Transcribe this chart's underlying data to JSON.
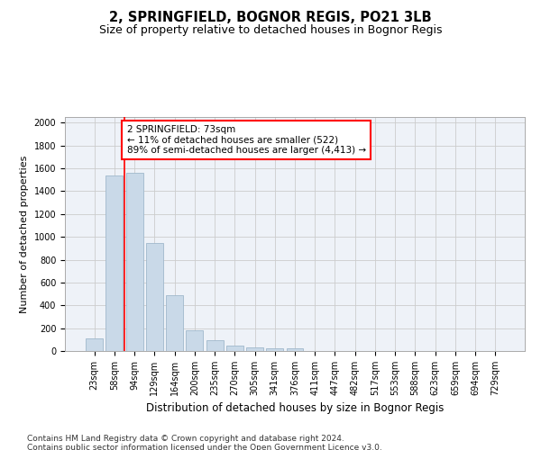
{
  "title": "2, SPRINGFIELD, BOGNOR REGIS, PO21 3LB",
  "subtitle": "Size of property relative to detached houses in Bognor Regis",
  "xlabel": "Distribution of detached houses by size in Bognor Regis",
  "ylabel": "Number of detached properties",
  "bar_labels": [
    "23sqm",
    "58sqm",
    "94sqm",
    "129sqm",
    "164sqm",
    "200sqm",
    "235sqm",
    "270sqm",
    "305sqm",
    "341sqm",
    "376sqm",
    "411sqm",
    "447sqm",
    "482sqm",
    "517sqm",
    "553sqm",
    "588sqm",
    "623sqm",
    "659sqm",
    "694sqm",
    "729sqm"
  ],
  "bar_values": [
    110,
    1535,
    1565,
    950,
    487,
    182,
    95,
    45,
    32,
    20,
    20,
    0,
    0,
    0,
    0,
    0,
    0,
    0,
    0,
    0,
    0
  ],
  "bar_color": "#c9d9e8",
  "bar_edge_color": "#a0b8cc",
  "vline_x_index": 1.5,
  "vline_color": "red",
  "annotation_text": "2 SPRINGFIELD: 73sqm\n← 11% of detached houses are smaller (522)\n89% of semi-detached houses are larger (4,413) →",
  "annotation_box_color": "white",
  "annotation_box_edge": "red",
  "ylim": [
    0,
    2050
  ],
  "yticks": [
    0,
    200,
    400,
    600,
    800,
    1000,
    1200,
    1400,
    1600,
    1800,
    2000
  ],
  "grid_color": "#cccccc",
  "background_color": "#eef2f8",
  "footer_text": "Contains HM Land Registry data © Crown copyright and database right 2024.\nContains public sector information licensed under the Open Government Licence v3.0.",
  "title_fontsize": 10.5,
  "subtitle_fontsize": 9,
  "xlabel_fontsize": 8.5,
  "ylabel_fontsize": 8,
  "tick_fontsize": 7,
  "annotation_fontsize": 7.5,
  "footer_fontsize": 6.5
}
